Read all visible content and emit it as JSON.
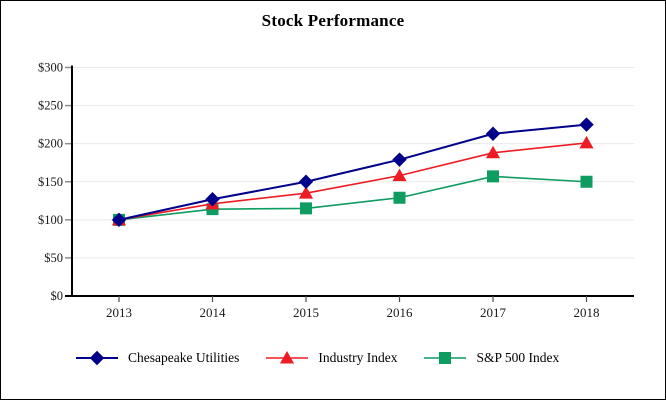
{
  "chart_data": {
    "type": "line",
    "title": "Stock Performance",
    "xlabel": "",
    "ylabel": "",
    "categories": [
      "2013",
      "2014",
      "2015",
      "2016",
      "2017",
      "2018"
    ],
    "series": [
      {
        "name": "Chesapeake Utilities",
        "color": "#00008B",
        "marker": "diamond",
        "values": [
          100,
          127,
          150,
          179,
          213,
          225
        ]
      },
      {
        "name": "Industry Index",
        "color": "#ED1C24",
        "marker": "triangle",
        "values": [
          100,
          121,
          135,
          158,
          188,
          201
        ]
      },
      {
        "name": "S&P 500 Index",
        "color": "#0E9C60",
        "marker": "square",
        "values": [
          100,
          114,
          115,
          129,
          157,
          150
        ]
      }
    ],
    "ylim": [
      0,
      300
    ],
    "y_tick_labels": [
      "$0",
      "$50",
      "$100",
      "$150",
      "$200",
      "$250",
      "$300"
    ],
    "grid": true,
    "legend_position": "bottom",
    "colors": {
      "axis": "#000000",
      "grid": "#E9E9E9",
      "tick": "#8C8C8C",
      "text": "#1A1A1A"
    }
  }
}
